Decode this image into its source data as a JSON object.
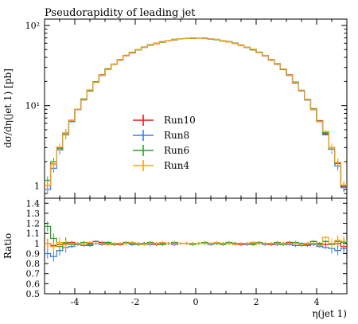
{
  "chart_data": {
    "type": "line",
    "title": "Pseudorapidity of leading jet",
    "xlabel": "η(jet 1)",
    "ylabel": "dσ/dη(jet 1) [pb]",
    "ratio_ylabel": "Ratio",
    "xlim": [
      -5,
      5
    ],
    "ylim": [
      0.7,
      120
    ],
    "yscale": "log",
    "ratio_ylim": [
      0.5,
      1.45
    ],
    "x_ticks": [
      -4,
      -2,
      0,
      2,
      4
    ],
    "x_tick_labels": [
      "-4",
      "-2",
      "0",
      "2",
      "4"
    ],
    "y_ticks": [
      1,
      10,
      100
    ],
    "y_tick_labels": [
      "1",
      "10¹",
      "10²"
    ],
    "ratio_ticks": [
      0.5,
      0.6,
      0.7,
      0.8,
      0.9,
      1,
      1.1,
      1.2,
      1.3,
      1.4
    ],
    "ratio_tick_labels": [
      "0.5",
      "0.6",
      "0.7",
      "0.8",
      "0.9",
      "1",
      "1.1",
      "1.2",
      "1.3",
      "1.4"
    ],
    "legend_position": "center-left",
    "bin_edges": [
      -5.0,
      -4.8,
      -4.6,
      -4.4,
      -4.2,
      -4.0,
      -3.8,
      -3.6,
      -3.4,
      -3.2,
      -3.0,
      -2.8,
      -2.6,
      -2.4,
      -2.2,
      -2.0,
      -1.8,
      -1.6,
      -1.4,
      -1.2,
      -1.0,
      -0.8,
      -0.6,
      -0.4,
      -0.2,
      0.0,
      0.2,
      0.4,
      0.6,
      0.8,
      1.0,
      1.2,
      1.4,
      1.6,
      1.8,
      2.0,
      2.2,
      2.4,
      2.6,
      2.8,
      3.0,
      3.2,
      3.4,
      3.6,
      3.8,
      4.0,
      4.2,
      4.4,
      4.6,
      4.8,
      5.0
    ],
    "reference": [
      1.0,
      1.9,
      3.0,
      4.5,
      6.5,
      9.0,
      12.0,
      15.5,
      19.5,
      24.0,
      28.5,
      33.0,
      37.5,
      42.0,
      46.0,
      50.0,
      53.5,
      57.0,
      60.0,
      62.5,
      64.5,
      66.5,
      68.0,
      69.0,
      69.5,
      69.5,
      69.0,
      68.0,
      66.5,
      64.5,
      62.5,
      60.0,
      57.0,
      53.5,
      50.0,
      46.0,
      42.0,
      37.5,
      33.0,
      28.5,
      24.0,
      19.5,
      15.5,
      12.0,
      9.0,
      6.5,
      4.5,
      3.0,
      1.9,
      1.0
    ],
    "series": [
      {
        "name": "Run10",
        "color": "#e41a1c",
        "ratio": [
          1.0,
          0.98,
          0.99,
          1.0,
          1.01,
          1.0,
          0.99,
          1.0,
          1.0,
          1.01,
          1.0,
          1.0,
          0.99,
          1.0,
          1.0,
          1.0,
          1.0,
          1.0,
          0.99,
          1.0,
          1.0,
          1.0,
          1.0,
          1.0,
          1.0,
          1.0,
          1.0,
          1.0,
          1.0,
          1.0,
          1.0,
          1.0,
          0.99,
          1.0,
          1.0,
          1.0,
          1.0,
          0.99,
          1.0,
          1.0,
          1.01,
          1.0,
          1.0,
          0.99,
          1.0,
          1.0,
          0.99,
          1.0,
          1.0,
          0.97
        ]
      },
      {
        "name": "Run8",
        "color": "#3b7fe0",
        "ratio": [
          0.9,
          0.87,
          0.93,
          0.96,
          0.97,
          0.99,
          0.98,
          0.99,
          1.0,
          0.99,
          1.0,
          0.99,
          1.0,
          1.0,
          0.99,
          1.0,
          1.0,
          0.99,
          1.0,
          1.0,
          1.0,
          0.99,
          1.0,
          1.0,
          1.0,
          1.0,
          1.0,
          0.99,
          1.0,
          1.0,
          1.0,
          1.0,
          1.0,
          0.99,
          1.0,
          1.0,
          0.99,
          1.0,
          0.99,
          1.0,
          0.99,
          0.98,
          1.0,
          0.98,
          0.99,
          0.97,
          0.96,
          0.95,
          0.93,
          0.95
        ]
      },
      {
        "name": "Run6",
        "color": "#2ca02c",
        "ratio": [
          1.17,
          1.05,
          0.97,
          1.01,
          0.99,
          1.0,
          1.01,
          0.98,
          1.02,
          1.0,
          1.01,
          0.99,
          1.0,
          1.01,
          1.0,
          0.99,
          1.0,
          1.01,
          1.0,
          0.99,
          1.0,
          1.01,
          1.0,
          1.0,
          0.99,
          1.0,
          1.01,
          1.0,
          1.0,
          0.99,
          1.01,
          1.0,
          1.0,
          1.0,
          0.99,
          1.01,
          1.0,
          1.0,
          1.01,
          0.99,
          1.0,
          1.01,
          0.98,
          1.0,
          1.02,
          0.99,
          1.02,
          0.99,
          1.02,
          1.01
        ]
      },
      {
        "name": "Run4",
        "color": "#ff9f1c",
        "ratio": [
          1.0,
          0.97,
          1.01,
          0.99,
          1.0,
          1.0,
          0.99,
          1.01,
          1.0,
          1.0,
          0.99,
          1.0,
          1.0,
          1.0,
          1.01,
          1.0,
          0.99,
          1.0,
          1.0,
          1.01,
          1.0,
          1.0,
          1.0,
          1.0,
          1.0,
          1.0,
          1.0,
          1.0,
          1.01,
          1.0,
          1.0,
          0.99,
          1.0,
          1.0,
          1.01,
          1.0,
          1.0,
          1.0,
          1.0,
          1.0,
          1.0,
          1.0,
          0.99,
          1.0,
          1.0,
          0.98,
          1.06,
          1.0,
          1.03,
          1.02
        ]
      }
    ]
  }
}
